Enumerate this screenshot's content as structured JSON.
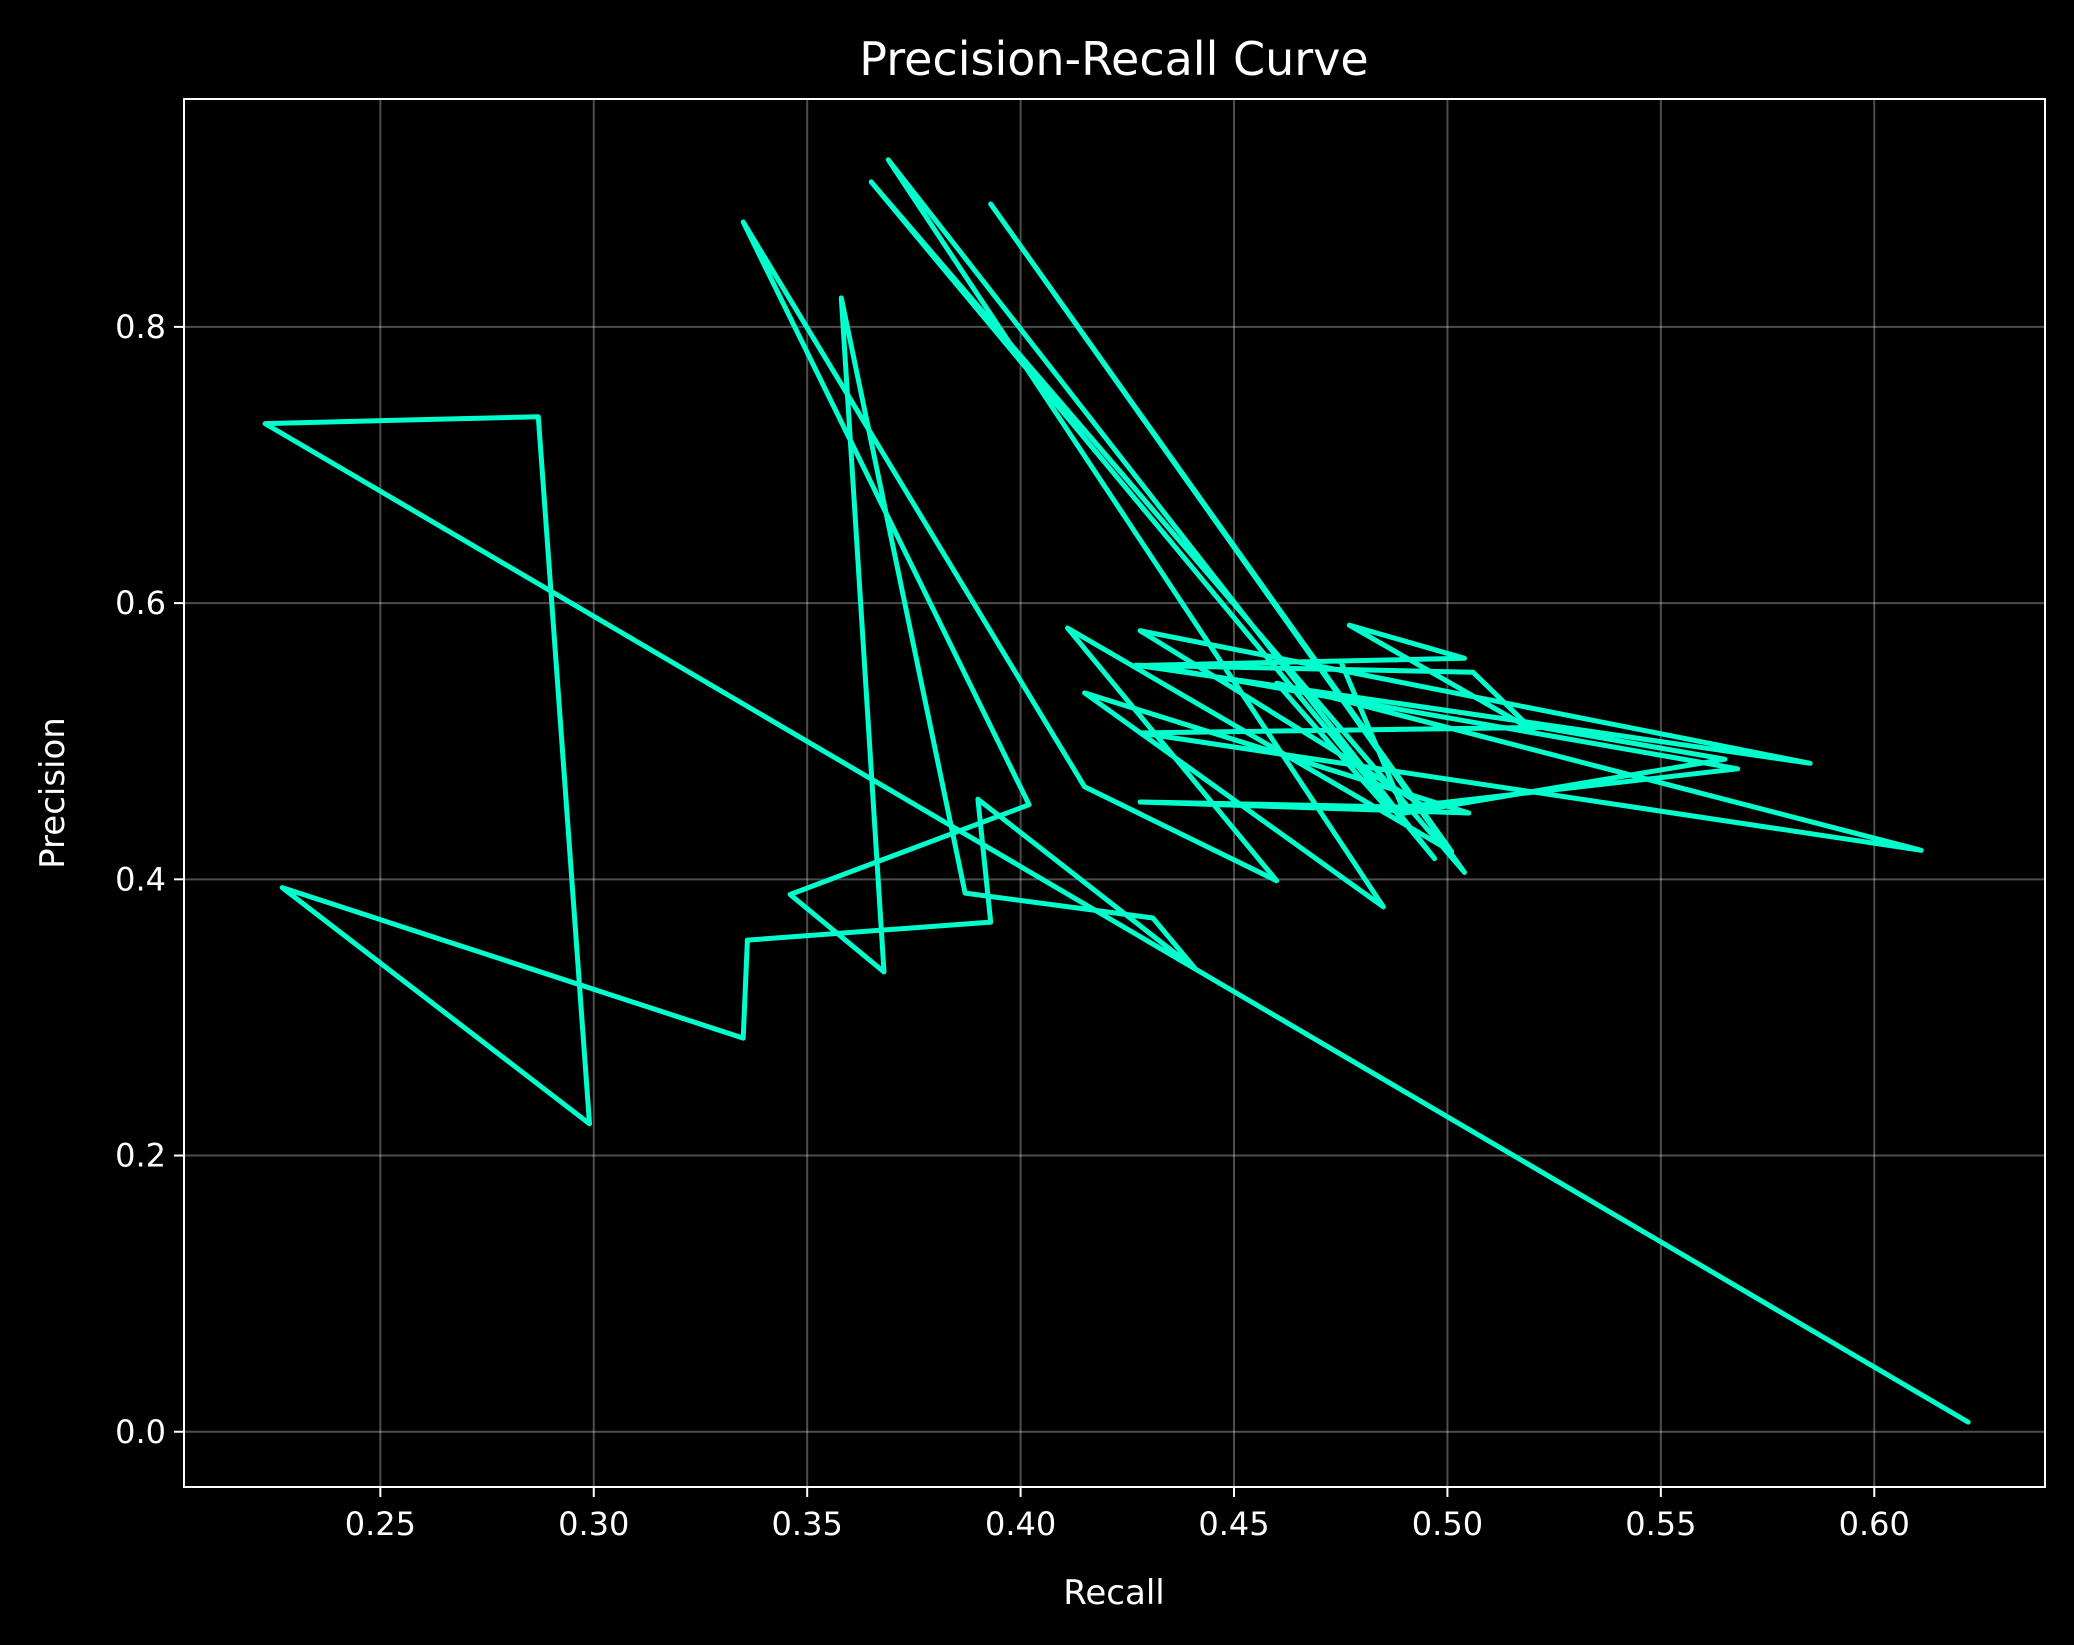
{
  "chart_data": {
    "type": "line",
    "title": "Precision-Recall Curve",
    "xlabel": "Recall",
    "ylabel": "Precision",
    "xlim": [
      0.204,
      0.64
    ],
    "ylim": [
      -0.04,
      0.965
    ],
    "xticks": [
      0.25,
      0.3,
      0.35,
      0.4,
      0.45,
      0.5,
      0.55,
      0.6
    ],
    "xtick_labels": [
      "0.25",
      "0.30",
      "0.35",
      "0.40",
      "0.45",
      "0.50",
      "0.55",
      "0.60"
    ],
    "yticks": [
      0.0,
      0.2,
      0.4,
      0.6,
      0.8
    ],
    "ytick_labels": [
      "0.0",
      "0.2",
      "0.4",
      "0.6",
      "0.8"
    ],
    "grid": true,
    "background_color": "#000000",
    "foreground_color": "#ffffff",
    "series": [
      {
        "color": "#00ffcc",
        "x": [
          0.622,
          0.223,
          0.287,
          0.299,
          0.227,
          0.335,
          0.336,
          0.393,
          0.39,
          0.441,
          0.431,
          0.387,
          0.358,
          0.368,
          0.346,
          0.402,
          0.335,
          0.415,
          0.46,
          0.411,
          0.501,
          0.393,
          0.504,
          0.365,
          0.497,
          0.369,
          0.485,
          0.415,
          0.505,
          0.428,
          0.495,
          0.428,
          0.585,
          0.427,
          0.506,
          0.52,
          0.477,
          0.504,
          0.43,
          0.568,
          0.486,
          0.46,
          0.611,
          0.428,
          0.522,
          0.565,
          0.49,
          0.475
        ],
        "y": [
          0.007,
          0.73,
          0.735,
          0.223,
          0.394,
          0.285,
          0.356,
          0.369,
          0.458,
          0.335,
          0.372,
          0.39,
          0.821,
          0.333,
          0.389,
          0.454,
          0.876,
          0.467,
          0.399,
          0.582,
          0.42,
          0.889,
          0.405,
          0.905,
          0.415,
          0.921,
          0.38,
          0.535,
          0.448,
          0.456,
          0.452,
          0.58,
          0.484,
          0.555,
          0.55,
          0.508,
          0.584,
          0.56,
          0.555,
          0.48,
          0.451,
          0.542,
          0.421,
          0.506,
          0.51,
          0.487,
          0.448,
          0.558
        ]
      }
    ]
  }
}
